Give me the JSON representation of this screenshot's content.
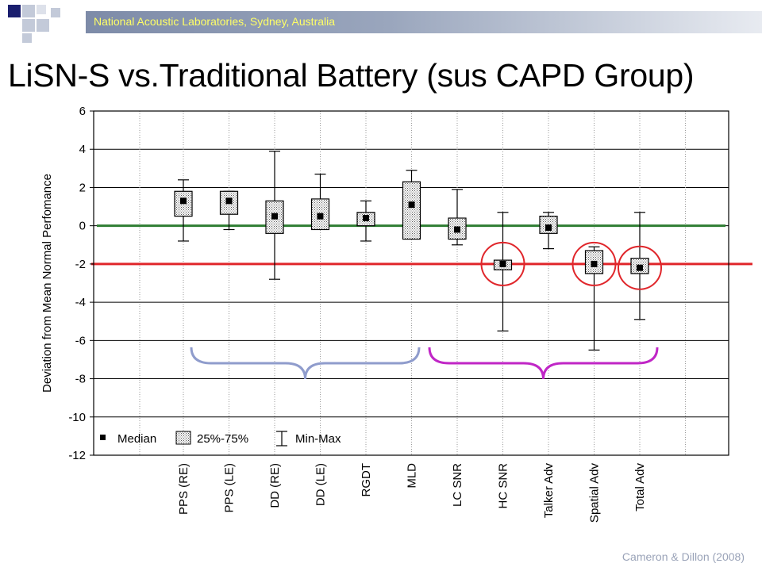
{
  "header": {
    "org": "National Acoustic Laboratories, Sydney, Australia",
    "title": "LiSN-S vs.Traditional Battery (sus CAPD Group)",
    "credit": "Cameron & Dillon (2008)"
  },
  "colors": {
    "banner": "#8a96b1",
    "banner_text": "#ffff66",
    "sq_navy": "#1a1e6e",
    "sq_light": "#c3cad9",
    "zero_line": "#2e7d32",
    "threshold_line": "#e0262b",
    "circle": "#e0262b",
    "brace_left": "#8f9ccc",
    "brace_right": "#c026c6"
  },
  "chart_data": {
    "type": "boxplot",
    "ylabel": "Deviation from Mean Normal Perfomance",
    "ylim": [
      -12,
      6
    ],
    "yticks": [
      6,
      4,
      2,
      0,
      -2,
      -4,
      -6,
      -8,
      -10,
      -12
    ],
    "grid": true,
    "categories": [
      "PPS (RE)",
      "PPS (LE)",
      "DD (RE)",
      "DD (LE)",
      "RGDT",
      "MLD",
      "LC SNR",
      "HC SNR",
      "Talker Adv",
      "Spatial Adv",
      "Total Adv"
    ],
    "median": [
      1.3,
      1.3,
      0.5,
      0.5,
      0.4,
      1.1,
      -0.2,
      -2.0,
      -0.1,
      -2.0,
      -2.2
    ],
    "q1": [
      0.5,
      0.6,
      -0.4,
      -0.2,
      0.0,
      -0.7,
      -0.7,
      -2.3,
      -0.4,
      -2.5,
      -2.5
    ],
    "q3": [
      1.8,
      1.8,
      1.3,
      1.4,
      0.7,
      2.3,
      0.4,
      -1.8,
      0.5,
      -1.3,
      -1.7
    ],
    "min": [
      -0.8,
      -0.2,
      -2.8,
      -0.1,
      -0.8,
      -0.6,
      -1.0,
      -5.5,
      -1.2,
      -6.5,
      -4.9
    ],
    "max": [
      2.4,
      1.8,
      3.9,
      2.7,
      1.3,
      2.9,
      1.9,
      0.7,
      0.7,
      -1.1,
      0.7
    ],
    "reference_lines": [
      {
        "y": 0,
        "color": "#2e7d32"
      },
      {
        "y": -2,
        "color": "#e0262b"
      }
    ],
    "highlighted": [
      "HC SNR",
      "Spatial Adv",
      "Total Adv"
    ],
    "groups": [
      {
        "from": "PPS (RE)",
        "to": "MLD",
        "color": "#8f9ccc"
      },
      {
        "from": "LC SNR",
        "to": "Total Adv",
        "color": "#c026c6"
      }
    ],
    "legend": {
      "position": "bottom-left",
      "entries": [
        "Median",
        "25%-75%",
        "Min-Max"
      ]
    }
  }
}
